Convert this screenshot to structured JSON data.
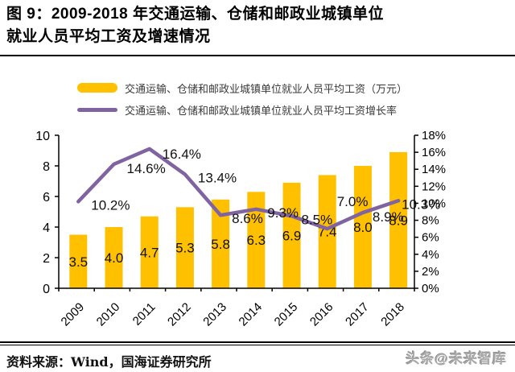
{
  "header": {
    "line1": "图 9：2009-2018 年交通运输、仓储和邮政业城镇单位",
    "line2": "就业人员平均工资及增速情况"
  },
  "legend": {
    "items": [
      {
        "label": "交通运输、仓储和邮政业城镇单位就业人员平均工资（万元）",
        "color": "#FFC000",
        "marker": "bar-swatch"
      },
      {
        "label": "交通运输、仓储和邮政业城镇单位就业人员平均工资增长率",
        "color": "#8064A2",
        "marker": "line-swatch"
      }
    ]
  },
  "chart_data": {
    "type": "bar",
    "categories": [
      "2009",
      "2010",
      "2011",
      "2012",
      "2013",
      "2014",
      "2015",
      "2016",
      "2017",
      "2018"
    ],
    "series": [
      {
        "name": "交通运输、仓储和邮政业城镇单位就业人员平均工资（万元）",
        "type": "bar",
        "axis": "left",
        "color": "#FFC000",
        "values": [
          3.5,
          4.0,
          4.7,
          5.3,
          5.8,
          6.3,
          6.9,
          7.4,
          8.0,
          8.9
        ],
        "labels": [
          "3.5",
          "4.0",
          "4.7",
          "5.3",
          "5.8",
          "6.3",
          "6.9",
          "7.4",
          "8.0",
          "8.9"
        ]
      },
      {
        "name": "交通运输、仓储和邮政业城镇单位就业人员平均工资增长率",
        "type": "line",
        "axis": "right",
        "color": "#8064A2",
        "values": [
          10.2,
          14.6,
          16.4,
          13.4,
          8.6,
          9.3,
          8.5,
          7.0,
          8.9,
          10.3
        ],
        "labels": [
          "10.2%",
          "14.6%",
          "16.4%",
          "13.4%",
          "8.6%",
          "9.3%",
          "8.5%",
          "7.0%",
          "8.9%",
          "10.3%"
        ],
        "label_offsets": [
          [
            16,
            10
          ],
          [
            16,
            11
          ],
          [
            16,
            12
          ],
          [
            16,
            10
          ],
          [
            14,
            10
          ],
          [
            14,
            10
          ],
          [
            12,
            10
          ],
          [
            12,
            -28
          ],
          [
            12,
            11
          ],
          [
            4,
            10
          ]
        ]
      }
    ],
    "left_axis": {
      "min": 0,
      "max": 10,
      "ticks": [
        "0",
        "2",
        "4",
        "6",
        "8",
        "10"
      ]
    },
    "right_axis": {
      "min": 0,
      "max": 18,
      "ticks": [
        "0%",
        "2%",
        "4%",
        "6%",
        "8%",
        "10%",
        "12%",
        "14%",
        "16%",
        "18%"
      ]
    },
    "grid": false,
    "legend_position": "top",
    "title": "2009-2018 年交通运输、仓储和邮政业城镇单位就业人员平均工资及增速情况"
  },
  "footer": {
    "source": "资料来源：Wind，国海证券研究所",
    "watermark": "头条@未来智库"
  }
}
